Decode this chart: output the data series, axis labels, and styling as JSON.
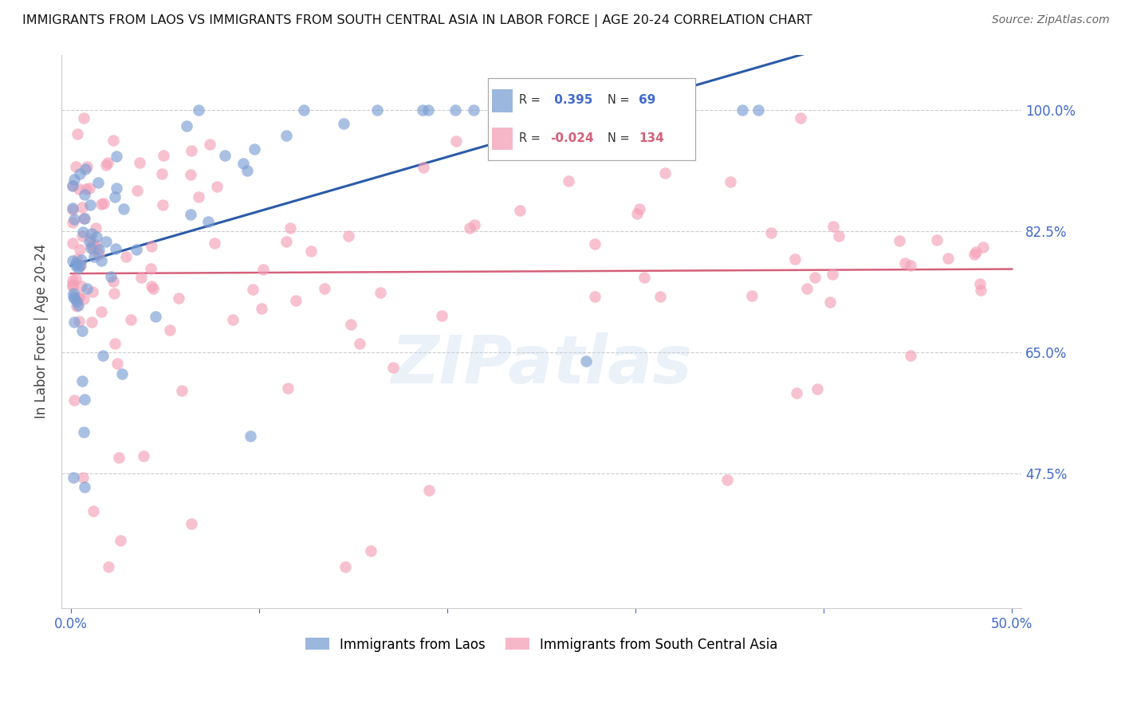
{
  "title": "IMMIGRANTS FROM LAOS VS IMMIGRANTS FROM SOUTH CENTRAL ASIA IN LABOR FORCE | AGE 20-24 CORRELATION CHART",
  "source": "Source: ZipAtlas.com",
  "ylabel": "In Labor Force | Age 20-24",
  "xlim": [
    -0.005,
    0.505
  ],
  "ylim": [
    0.28,
    1.08
  ],
  "yticks": [
    0.475,
    0.65,
    0.825,
    1.0
  ],
  "ytick_labels": [
    "47.5%",
    "65.0%",
    "82.5%",
    "100.0%"
  ],
  "xticks": [
    0.0,
    0.1,
    0.2,
    0.3,
    0.4,
    0.5
  ],
  "xtick_labels": [
    "0.0%",
    "",
    "",
    "",
    "",
    "50.0%"
  ],
  "R_blue": 0.395,
  "N_blue": 69,
  "R_pink": -0.024,
  "N_pink": 134,
  "blue_color": "#7B9FD4",
  "pink_color": "#F4A0B8",
  "blue_line_color": "#2B5BA8",
  "pink_line_color": "#D4607A",
  "legend_label_blue": "Immigrants from Laos",
  "legend_label_pink": "Immigrants from South Central Asia",
  "blue_tick_color": "#4169CC",
  "watermark": "ZIPatlas"
}
